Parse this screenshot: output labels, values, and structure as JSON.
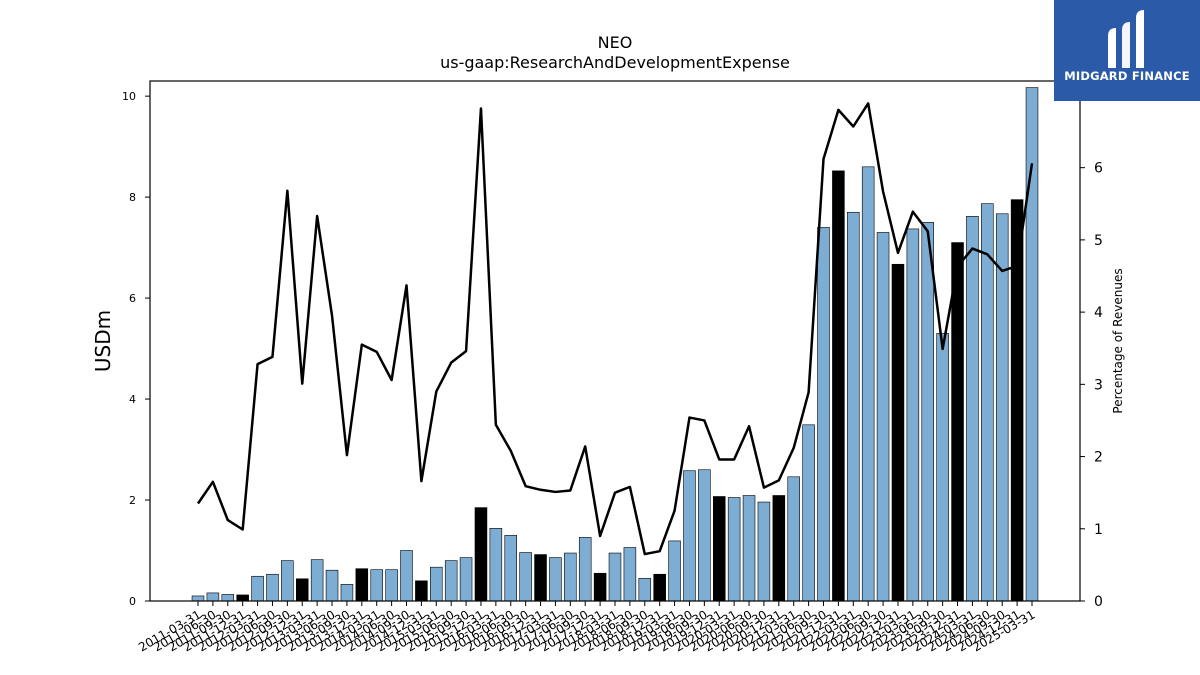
{
  "chart_data": {
    "type": "bar",
    "title": "NEO",
    "subtitle": "us-gaap:ResearchAndDevelopmentExpense",
    "ylabel": "USDm",
    "ylabel_right": "Percentage of Revenues",
    "ylim": [
      0,
      10.3
    ],
    "ylim_right": [
      0,
      7.2
    ],
    "yticks": [
      0,
      2,
      4,
      6,
      8,
      10
    ],
    "yticks_right": [
      0,
      1,
      2,
      3,
      4,
      5,
      6
    ],
    "grid": false,
    "colors": {
      "bar": "#7eadd4",
      "bar_highlight": "#000000",
      "line": "#000000"
    },
    "categories": [
      "2011-03-31",
      "2011-06-30",
      "2011-09-30",
      "2011-12-31",
      "2012-03-31",
      "2012-06-30",
      "2012-09-30",
      "2012-12-31",
      "2013-03-31",
      "2013-06-30",
      "2013-09-30",
      "2013-12-31",
      "2014-03-31",
      "2014-06-30",
      "2014-09-30",
      "2014-12-31",
      "2015-03-31",
      "2015-06-30",
      "2015-09-30",
      "2015-12-31",
      "2016-03-31",
      "2016-06-30",
      "2016-09-30",
      "2016-12-31",
      "2017-03-31",
      "2017-06-30",
      "2017-09-30",
      "2017-12-31",
      "2018-03-31",
      "2018-06-30",
      "2018-09-30",
      "2018-12-31",
      "2019-03-31",
      "2019-06-30",
      "2019-09-30",
      "2019-12-31",
      "2020-03-31",
      "2020-06-30",
      "2020-09-30",
      "2020-12-31",
      "2021-03-31",
      "2021-06-30",
      "2021-09-30",
      "2021-12-31",
      "2022-03-31",
      "2022-06-30",
      "2022-09-30",
      "2022-12-31",
      "2023-03-31",
      "2023-06-30",
      "2023-09-30",
      "2023-12-31",
      "2024-03-31",
      "2024-06-30",
      "2024-09-30",
      "2024-12-31",
      "2025-03-31"
    ],
    "tick_labels": [
      "2011-03-31",
      "2011-06-30",
      "2011-09-30",
      "2011-12-31",
      "2012-03-31",
      "2012-06-30",
      "2012-09-30",
      "2012-12-31",
      "2013-03-31",
      "2013-06-30",
      "2013-09-30",
      "2013-12-31",
      "2014-03-31",
      "2014-06-30",
      "2014-09-30",
      "2014-12-31",
      "2015-03-31",
      "2015-06-30",
      "2015-09-30",
      "2015-12-31",
      "2016-03-31",
      "2016-06-30",
      "2016-09-30",
      "2016-12-31",
      "2017-03-31",
      "2017-06-30",
      "2017-09-30",
      "2017-12-31",
      "2018-03-31",
      "2018-06-30",
      "2018-09-30",
      "2018-12-31",
      "2019-03-31",
      "2019-06-30",
      "2019-09-30",
      "2019-12-31",
      "2020-03-31",
      "2020-06-30",
      "2020-09-30",
      "2020-12-31",
      "2021-03-31",
      "2021-06-30",
      "2021-09-30",
      "2021-12-31",
      "2022-03-31",
      "2022-06-30",
      "2022-09-30",
      "2022-12-31",
      "2023-03-31",
      "2023-06-30",
      "2023-09-30",
      "2023-12-31",
      "2024-03-31",
      "2024-06-30",
      "2024-09-30",
      "2024-12-31",
      "2025-03-31"
    ],
    "series": [
      {
        "type": "bar",
        "axis": "left",
        "values": [
          0.1,
          0.16,
          0.13,
          0.12,
          0.49,
          0.53,
          0.8,
          0.44,
          0.82,
          0.61,
          0.33,
          0.64,
          0.62,
          0.62,
          1.0,
          0.4,
          0.67,
          0.8,
          0.86,
          1.85,
          1.44,
          1.3,
          0.96,
          0.92,
          0.86,
          0.95,
          1.26,
          0.55,
          0.95,
          1.06,
          0.45,
          0.53,
          1.19,
          2.58,
          2.6,
          2.07,
          2.05,
          2.09,
          1.96,
          2.09,
          2.46,
          3.49,
          7.4,
          8.52,
          7.7,
          8.6,
          7.3,
          6.67,
          7.37,
          7.5,
          5.3,
          7.1,
          7.62,
          7.87,
          7.67,
          7.95,
          10.17
        ],
        "highlight": [
          false,
          false,
          false,
          true,
          false,
          false,
          false,
          true,
          false,
          false,
          false,
          true,
          false,
          false,
          false,
          true,
          false,
          false,
          false,
          true,
          false,
          false,
          false,
          true,
          false,
          false,
          false,
          true,
          false,
          false,
          false,
          true,
          false,
          false,
          false,
          true,
          false,
          false,
          false,
          true,
          false,
          false,
          false,
          true,
          false,
          false,
          false,
          true,
          false,
          false,
          false,
          true,
          false,
          false,
          false,
          true,
          false
        ]
      },
      {
        "type": "line",
        "axis": "right",
        "values": [
          1.35,
          1.65,
          1.12,
          0.99,
          3.28,
          3.38,
          5.68,
          3.01,
          5.33,
          3.95,
          2.02,
          3.55,
          3.45,
          3.06,
          4.37,
          1.66,
          2.9,
          3.3,
          3.46,
          6.82,
          2.44,
          2.08,
          1.59,
          1.54,
          1.51,
          1.53,
          2.14,
          0.9,
          1.5,
          1.58,
          0.65,
          0.69,
          1.25,
          2.54,
          2.5,
          1.96,
          1.96,
          2.42,
          1.57,
          1.67,
          2.12,
          2.89,
          6.12,
          6.8,
          6.57,
          6.89,
          5.67,
          4.82,
          5.39,
          5.12,
          3.49,
          4.63,
          4.88,
          4.8,
          4.57,
          4.64,
          6.06
        ]
      }
    ]
  },
  "logo": {
    "text": "MIDGARD FINANCE"
  }
}
